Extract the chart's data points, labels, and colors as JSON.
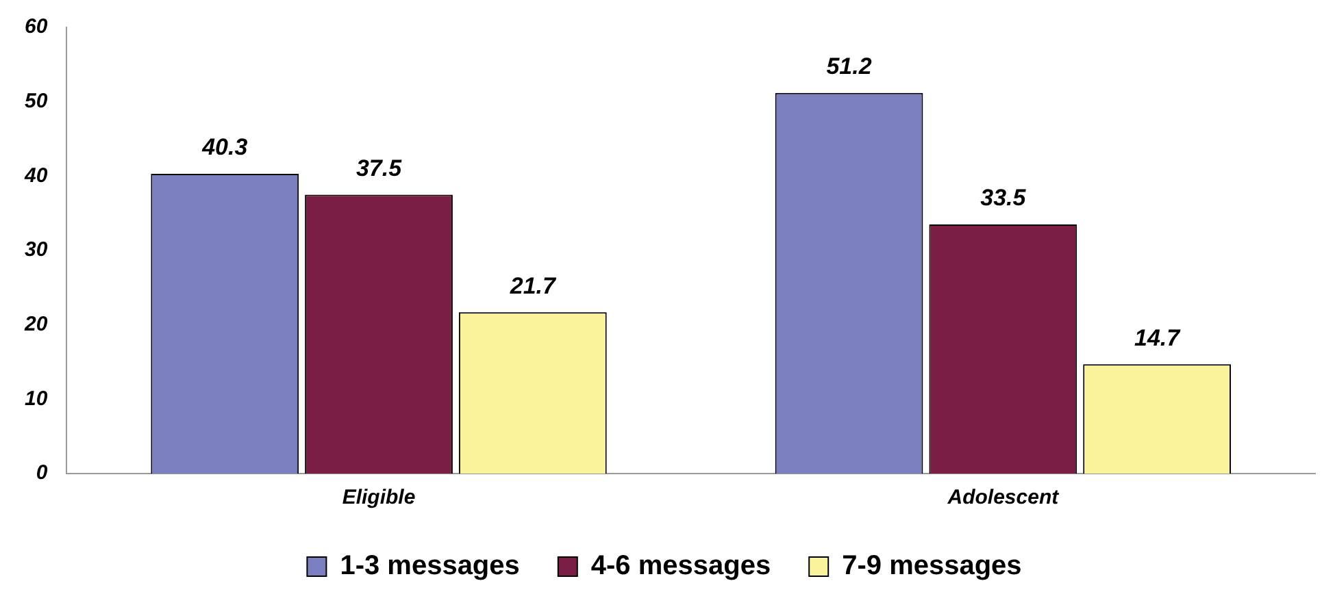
{
  "chart_data": {
    "type": "bar",
    "categories": [
      "Eligible",
      "Adolescent"
    ],
    "series": [
      {
        "name": "1-3 messages",
        "color": "#7b7fc0",
        "values": [
          40.3,
          51.2
        ]
      },
      {
        "name": "4-6 messages",
        "color": "#7a1e45",
        "values": [
          37.5,
          33.5
        ]
      },
      {
        "name": "7-9 messages",
        "color": "#fbf39b",
        "values": [
          21.7,
          14.7
        ]
      }
    ],
    "ylim": [
      0,
      60
    ],
    "yticks": [
      0,
      10,
      20,
      30,
      40,
      50,
      60
    ],
    "grid": false,
    "legend": "bottom",
    "data_labels": true
  }
}
